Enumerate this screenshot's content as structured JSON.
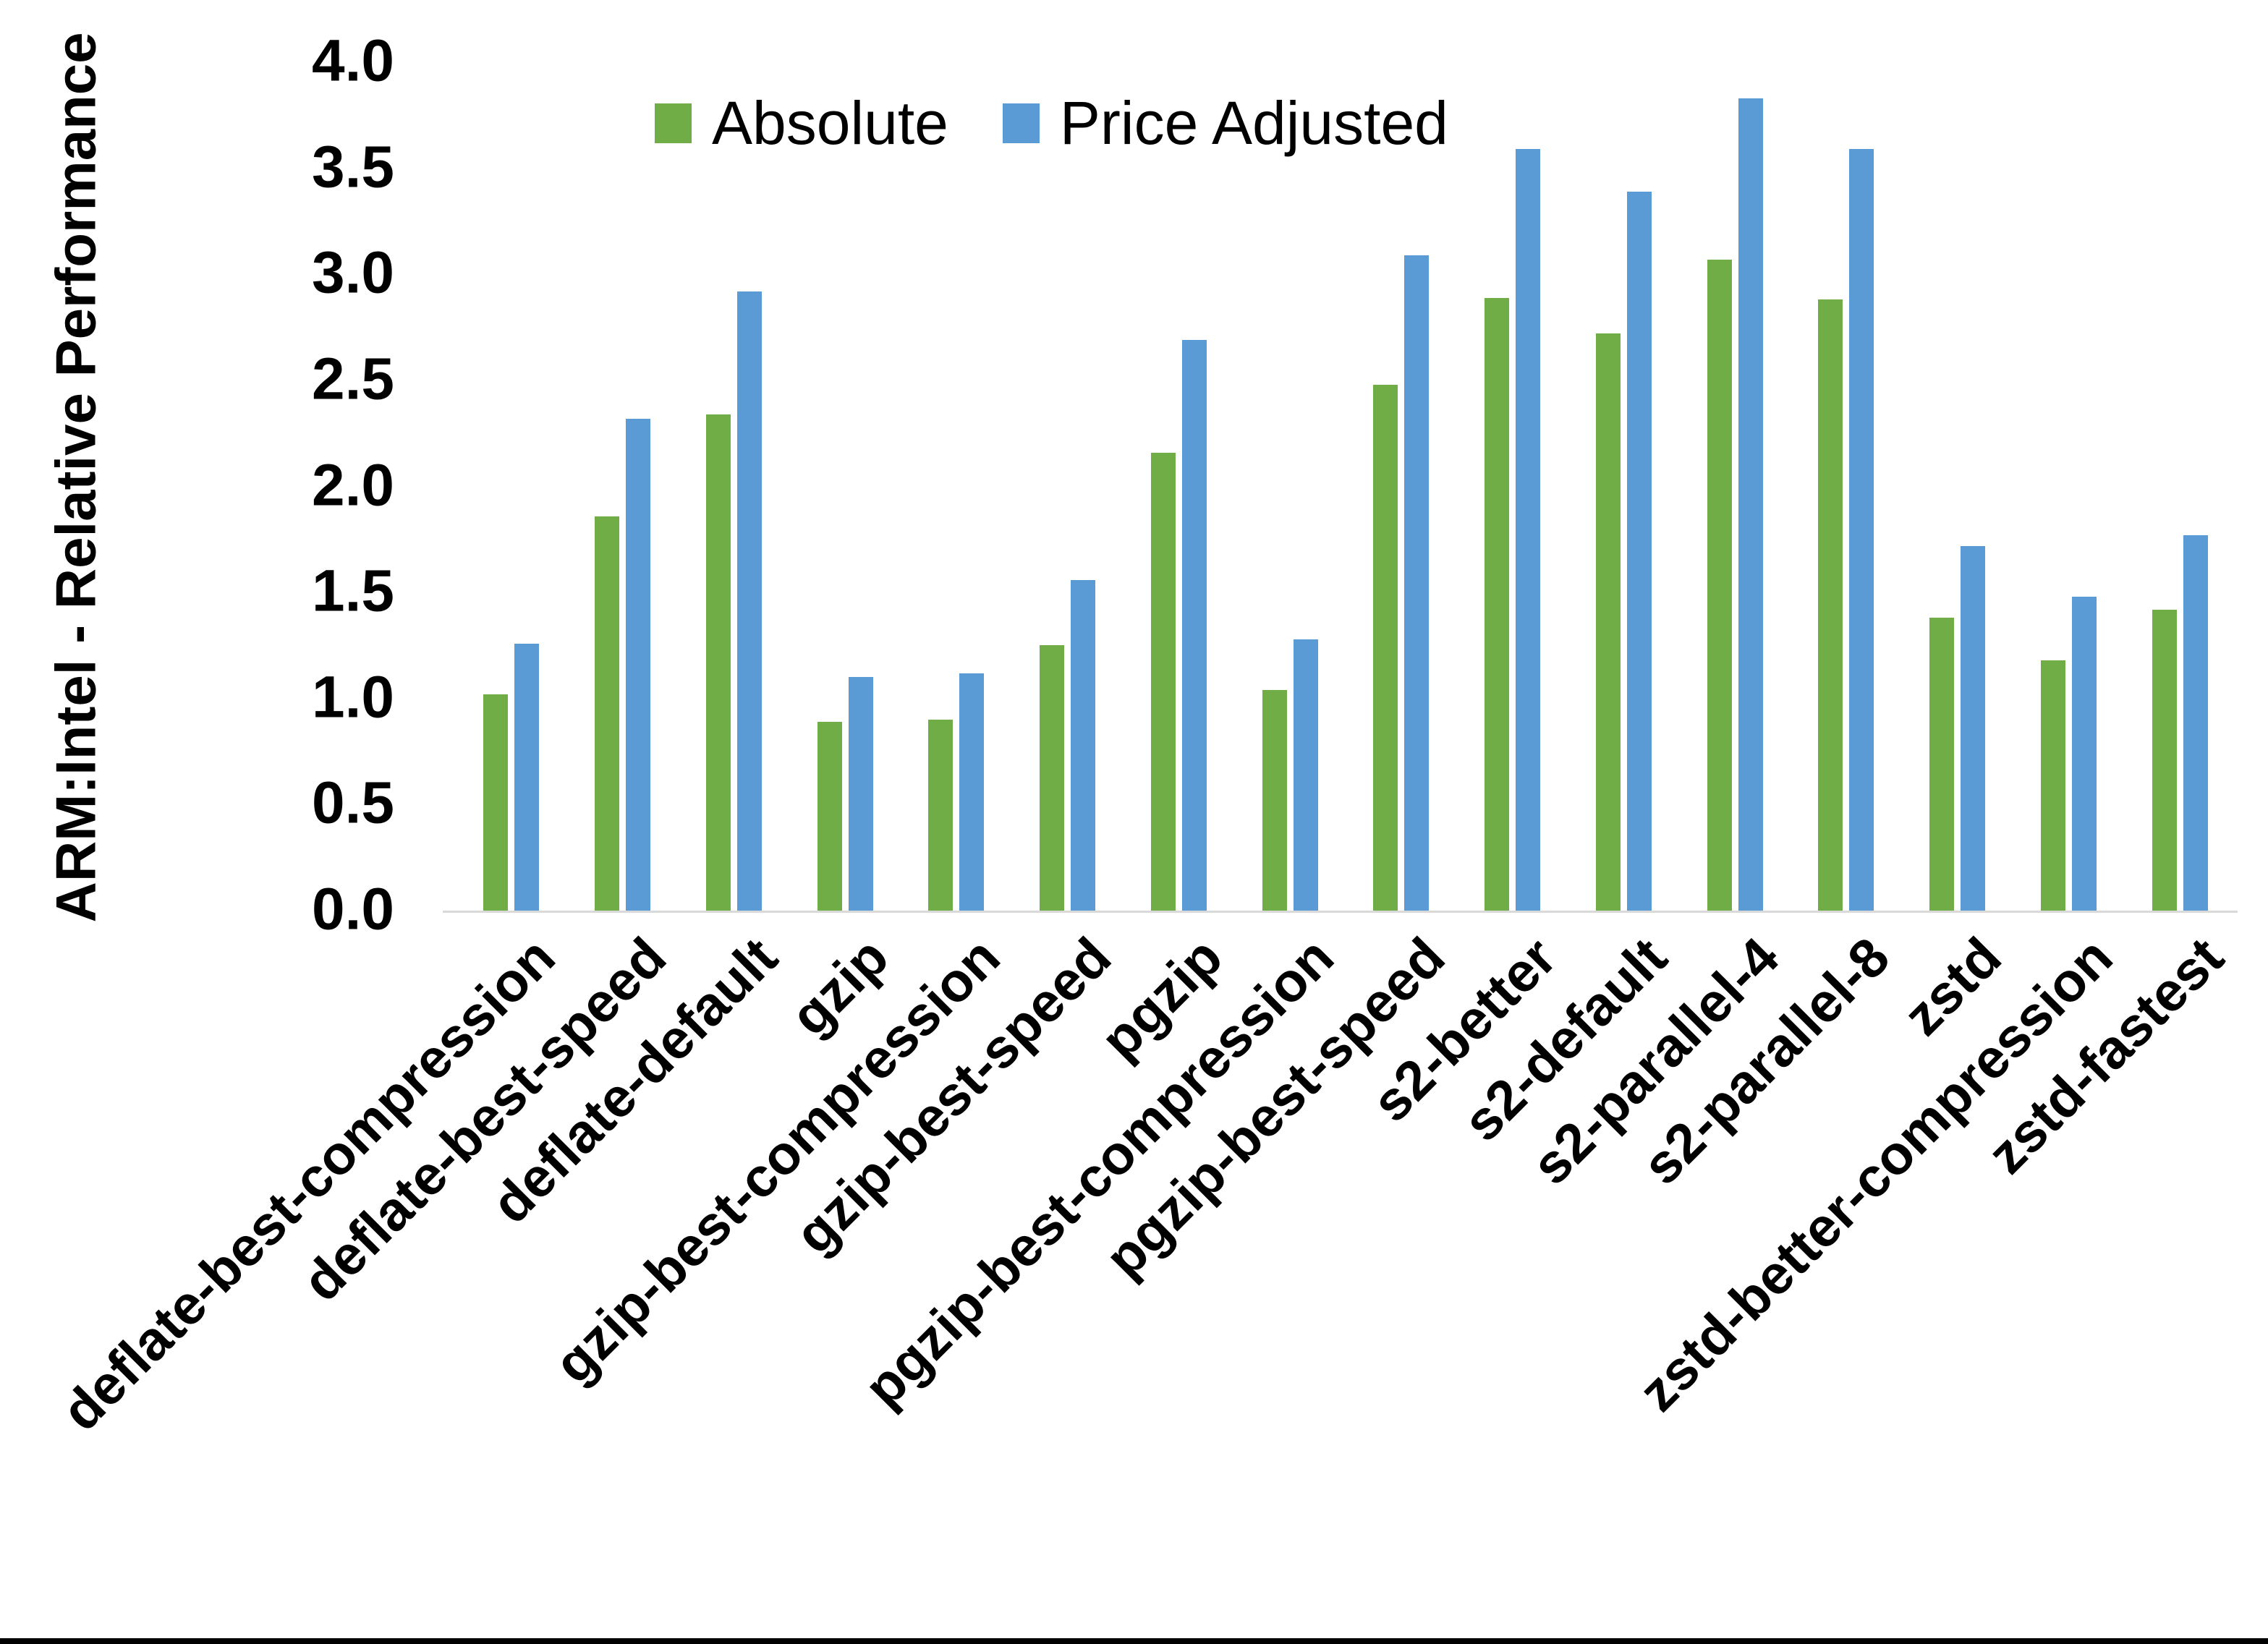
{
  "chart_data": {
    "type": "bar",
    "title": "",
    "ylabel": "ARM:Intel - Relative Performance",
    "xlabel": "",
    "ylim": [
      0.0,
      4.0
    ],
    "ytick_step": 0.5,
    "yticks": [
      "0.0",
      "0.5",
      "1.0",
      "1.5",
      "2.0",
      "2.5",
      "3.0",
      "3.5",
      "4.0"
    ],
    "grid": false,
    "legend_position": "top-center",
    "categories": [
      "deflate-best-compression",
      "deflate-best-speed",
      "deflate-default",
      "gzip",
      "gzip-best-compression",
      "gzip-best-speed",
      "pgzip",
      "pgzip-best-compression",
      "pgzip-best-speed",
      "s2-better",
      "s2-default",
      "s2-parallel-4",
      "s2-parallel-8",
      "zstd",
      "zstd-better-compression",
      "zstd-fastest"
    ],
    "series": [
      {
        "name": "Absolute",
        "color": "#70AD47",
        "values": [
          1.02,
          1.86,
          2.34,
          0.89,
          0.9,
          1.25,
          2.16,
          1.04,
          2.48,
          2.89,
          2.72,
          3.07,
          2.88,
          1.38,
          1.18,
          1.42
        ]
      },
      {
        "name": "Price Adjusted",
        "color": "#5B9BD5",
        "values": [
          1.26,
          2.32,
          2.92,
          1.1,
          1.12,
          1.56,
          2.69,
          1.28,
          3.09,
          3.59,
          3.39,
          3.83,
          3.59,
          1.72,
          1.48,
          1.77
        ]
      }
    ],
    "colors": {
      "background": "#FFFFFF",
      "text": "#000000",
      "axis_line": "#D9D9D9",
      "bottom_border": "#000000"
    }
  }
}
